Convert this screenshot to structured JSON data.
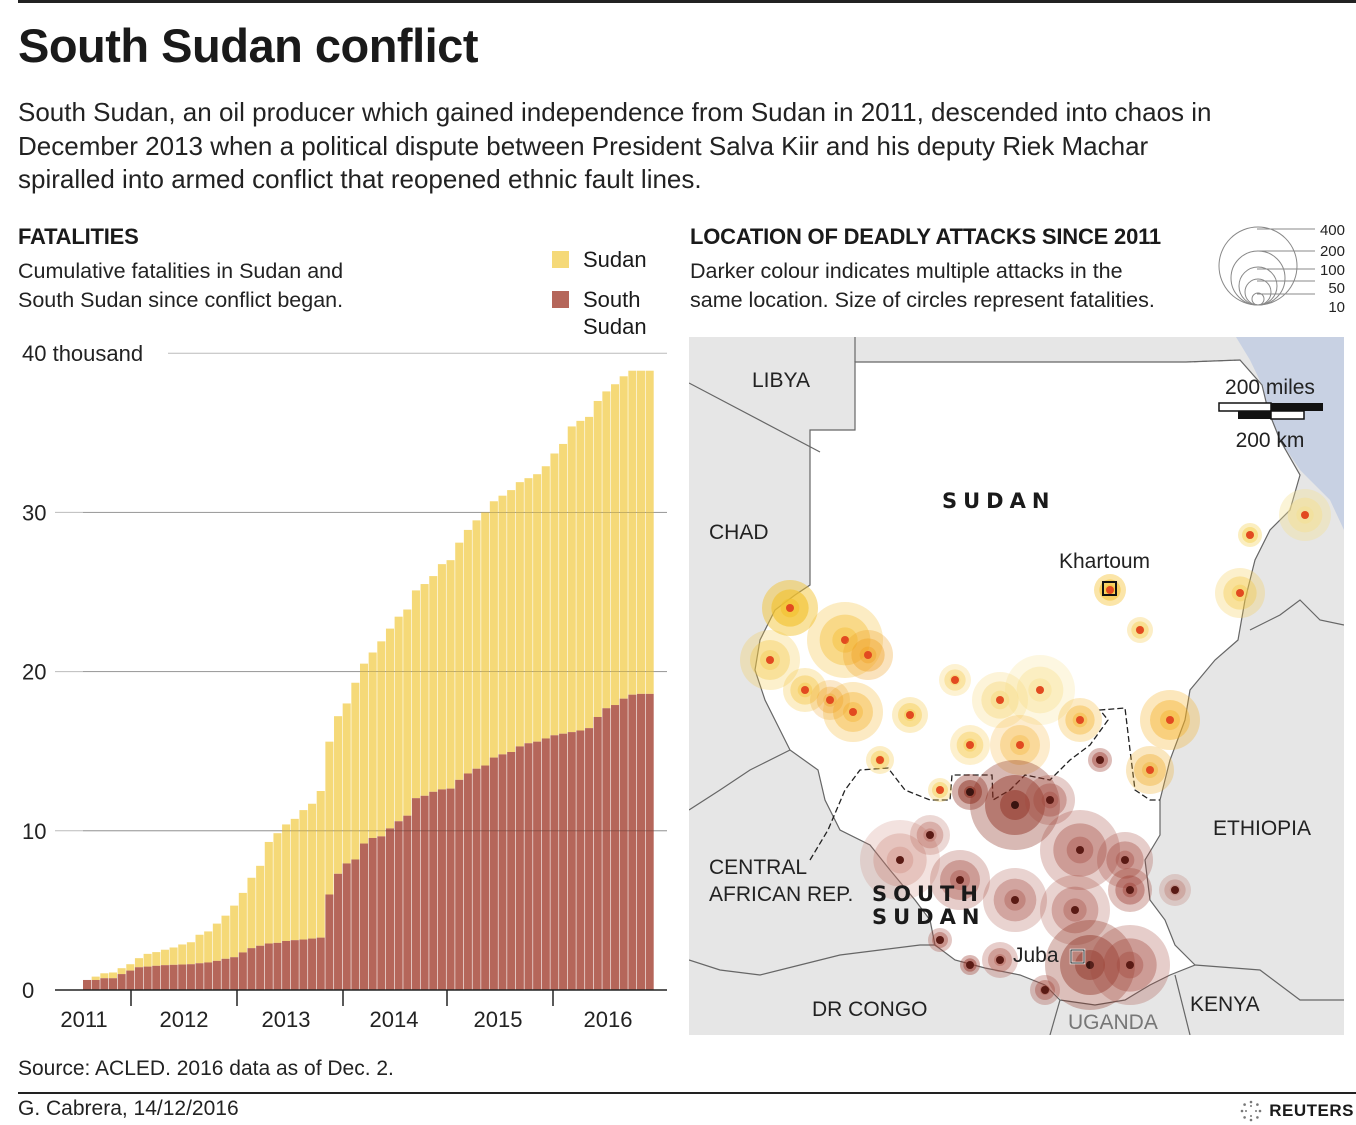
{
  "header": {
    "title": "South Sudan conflict",
    "intro": "South Sudan, an oil producer which gained independence from Sudan in 2011, descended into chaos in December 2013 when a political dispute between President Salva Kiir and his deputy Riek Machar spiralled into armed conflict that reopened ethnic fault lines."
  },
  "fatalities": {
    "title": "FATALITIES",
    "subtitle_line1": "Cumulative fatalities in Sudan and",
    "subtitle_line2": "South Sudan since conflict began.",
    "legend": [
      {
        "label": "Sudan",
        "color": "#f5d978"
      },
      {
        "label_line1": "South",
        "label_line2": "Sudan",
        "color": "#b5665a"
      }
    ]
  },
  "map": {
    "title": "LOCATION OF DEADLY ATTACKS SINCE 2011",
    "subtitle_line1": "Darker colour indicates multiple attacks in the",
    "subtitle_line2": "same location. Size of circles represent fatalities.",
    "size_legend": [
      "400",
      "200",
      "100",
      "50",
      "10"
    ],
    "scale": {
      "miles": "200 miles",
      "km": "200 km"
    },
    "labels": {
      "libya": "LIBYA",
      "chad": "CHAD",
      "sudan": "SUDAN",
      "khartoum": "Khartoum",
      "ethiopia": "ETHIOPIA",
      "car_line1": "CENTRAL",
      "car_line2": "AFRICAN REP.",
      "south_sudan_line1": "SOUTH",
      "south_sudan_line2": "SUDAN",
      "juba": "Juba",
      "drc": "DR CONGO",
      "uganda": "UGANDA",
      "kenya": "KENYA"
    },
    "colors": {
      "land_other": "#e6e6e6",
      "land_focus": "#ffffff",
      "water": "#c8d1e3",
      "border": "#666666"
    }
  },
  "footer": {
    "source": "Source: ACLED. 2016 data as of Dec. 2.",
    "credit": "G. Cabrera,  14/12/2016",
    "brand": "REUTERS"
  },
  "chart_data": {
    "type": "bar",
    "stacked": true,
    "title": "FATALITIES",
    "subtitle": "Cumulative fatalities in Sudan and South Sudan since conflict began.",
    "xlabel": "",
    "ylabel": "thousand",
    "ylim": [
      0,
      40
    ],
    "yticks": [
      0,
      10,
      20,
      30,
      40
    ],
    "ytick_labels": [
      "0",
      "10",
      "20",
      "30",
      "40 thousand"
    ],
    "xtick_labels": [
      "2011",
      "2012",
      "2013",
      "2014",
      "2015",
      "2016"
    ],
    "grid": true,
    "legend_position": "top-right",
    "categories_note": "monthly, Jul 2011 - Dec 2016 (66 bars)",
    "series": [
      {
        "name": "South Sudan",
        "color": "#b5665a",
        "values": [
          0.63,
          0.63,
          0.74,
          0.74,
          1.0,
          1.22,
          1.43,
          1.47,
          1.52,
          1.56,
          1.58,
          1.6,
          1.62,
          1.68,
          1.73,
          1.83,
          1.96,
          2.06,
          2.36,
          2.63,
          2.78,
          2.92,
          2.96,
          3.08,
          3.13,
          3.17,
          3.23,
          3.29,
          6.0,
          7.3,
          7.95,
          8.2,
          9.2,
          9.55,
          9.65,
          10.15,
          10.6,
          10.95,
          12.05,
          12.2,
          12.45,
          12.6,
          12.65,
          13.2,
          13.6,
          13.9,
          14.1,
          14.6,
          14.8,
          14.95,
          15.3,
          15.5,
          15.6,
          15.8,
          16.0,
          16.1,
          16.2,
          16.3,
          16.45,
          17.15,
          17.7,
          17.9,
          18.3,
          18.55,
          18.6,
          18.6
        ]
      },
      {
        "name": "Sudan",
        "color": "#f5d978",
        "values": [
          0.0,
          0.21,
          0.31,
          0.36,
          0.37,
          0.4,
          0.57,
          0.8,
          0.86,
          0.97,
          1.09,
          1.26,
          1.38,
          1.79,
          1.95,
          2.34,
          2.71,
          3.24,
          3.74,
          4.42,
          5.02,
          6.38,
          6.89,
          7.32,
          7.62,
          8.13,
          8.47,
          9.21,
          9.6,
          9.9,
          10.05,
          11.1,
          11.3,
          11.65,
          12.25,
          12.55,
          12.85,
          12.95,
          13.05,
          13.3,
          13.55,
          14.15,
          14.35,
          14.9,
          15.3,
          15.6,
          15.9,
          16.1,
          16.25,
          16.45,
          16.6,
          16.65,
          16.8,
          17.1,
          17.7,
          18.2,
          19.2,
          19.45,
          19.55,
          19.85,
          19.9,
          20.15,
          20.25,
          20.35,
          20.3,
          20.3
        ]
      }
    ],
    "totals": [
      0.63,
      0.84,
      1.05,
      1.1,
      1.37,
      1.62,
      2.0,
      2.27,
      2.38,
      2.53,
      2.67,
      2.86,
      3.0,
      3.47,
      3.68,
      4.17,
      4.67,
      5.3,
      6.1,
      7.05,
      7.8,
      9.3,
      9.85,
      10.4,
      10.75,
      11.3,
      11.7,
      12.5,
      15.6,
      17.2,
      18.0,
      19.3,
      20.5,
      21.2,
      21.9,
      22.7,
      23.45,
      23.9,
      25.1,
      25.5,
      26.0,
      26.75,
      27.0,
      28.1,
      28.9,
      29.5,
      30.0,
      30.7,
      31.05,
      31.4,
      31.9,
      32.15,
      32.4,
      32.9,
      33.7,
      34.3,
      35.4,
      35.75,
      36.0,
      37.0,
      37.6,
      38.05,
      38.55,
      38.9,
      38.9,
      38.9
    ]
  }
}
